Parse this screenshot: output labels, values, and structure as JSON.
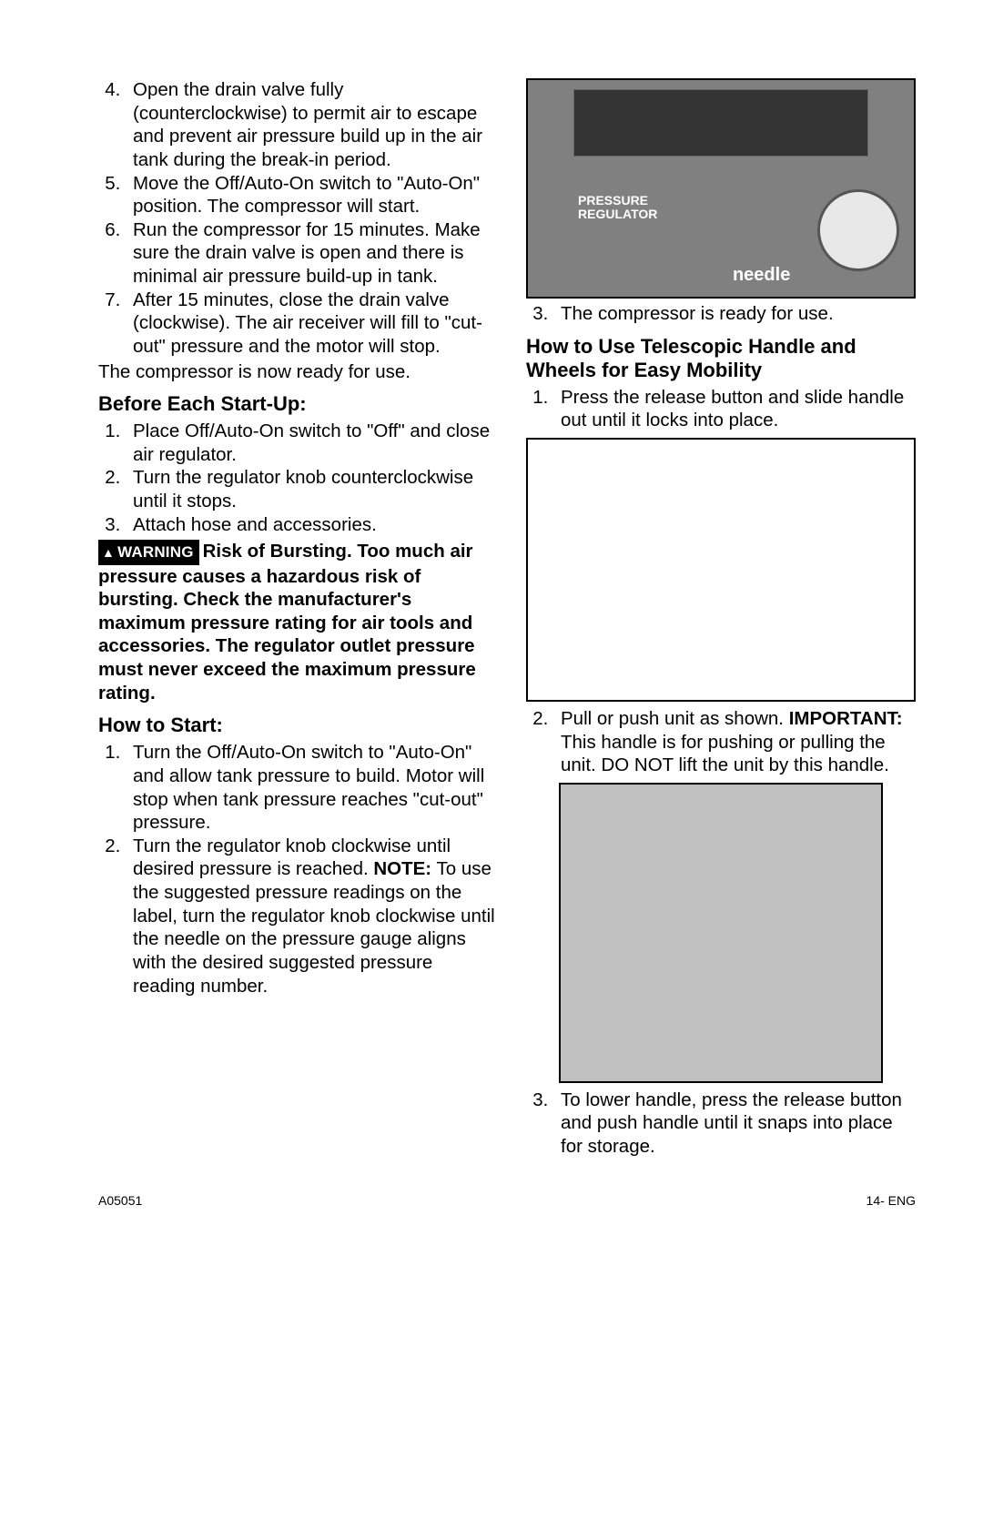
{
  "left": {
    "list1": [
      "Open the drain valve fully (counterclockwise) to permit air to escape and prevent air pressure build up in the air tank during the break-in period.",
      "Move the Off/Auto-On switch to \"Auto-On\" position. The compressor will start.",
      "Run the compressor for 15 minutes. Make sure the drain valve is open and there is minimal air pressure build-up in tank.",
      "After 15 minutes, close the drain valve (clockwise). The air receiver will fill to \"cut-out\" pressure and the motor will stop."
    ],
    "after_list1": "The compressor is now ready for use.",
    "h_before": "Before Each Start-Up:",
    "list2": [
      "Place Off/Auto-On switch  to \"Off\" and close air regulator.",
      "Turn the regulator knob counterclockwise until it stops.",
      "Attach hose and accessories."
    ],
    "warning_label": "WARNING",
    "warning_text": "Risk of Bursting. Too much air pressure causes a hazardous risk of bursting. Check the manufacturer's maximum pressure rating for air tools and accessories. The regulator outlet pressure must never exceed the maximum pressure rating.",
    "h_start": "How to Start:",
    "list3_item1_pre": "Turn the Off/Auto-On switch to \"Auto-On\" and allow tank pressure to build.  Motor will stop when tank pressure reaches \"cut-out\" pressure.",
    "list3_item2_pre": "Turn the regulator knob clockwise until desired pressure is reached. ",
    "list3_item2_note": "NOTE:",
    "list3_item2_post": " To use the suggested pressure readings on the label, turn the regulator knob clockwise until the needle on the pressure gauge aligns with the desired suggested pressure reading number."
  },
  "right": {
    "needle_label": "needle",
    "pressure_label": "PRESSURE\nREGULATOR",
    "list1": [
      "The compressor is ready for use."
    ],
    "h_handle": "How to Use Telescopic Handle and Wheels for Easy Mobility",
    "list2_item1": "Press the release button and slide handle out until it locks into place.",
    "list2_item2_pre": "Pull or push unit as shown. ",
    "list2_item2_imp": "IMPORTANT:",
    "list2_item2_post": " This handle is for pushing or pulling the unit. DO NOT lift the unit by this handle.",
    "list2_item3": "To lower handle, press the release button and push handle until it snaps into place for storage."
  },
  "footer": {
    "left": "A05051",
    "right": "14- ENG"
  }
}
